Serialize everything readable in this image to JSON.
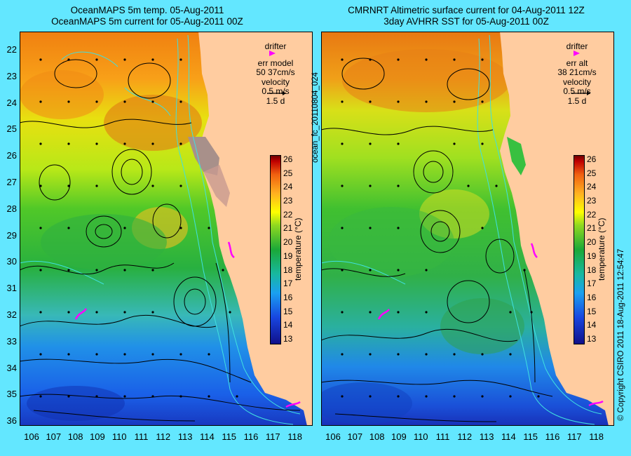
{
  "left_panel": {
    "title_line1": "OceanMAPS 5m temp. 05-Aug-2011",
    "title_line2": "OceanMAPS 5m current for 05-Aug-2011 00Z",
    "legend": {
      "drifter_label": "drifter",
      "err_label": "err model",
      "err_value": "50 37cm/s",
      "velocity_label": "velocity",
      "velocity_scale": "0.5 m/s",
      "duration": "1.5 d"
    }
  },
  "right_panel": {
    "title_line1": "CMRNRT Altimetric surface current for 04-Aug-2011 12Z",
    "title_line2": "3day AVHRR SST for 05-Aug-2011 00Z",
    "legend": {
      "drifter_label": "drifter",
      "err_label": "err alt",
      "err_value": "38 21cm/s",
      "velocity_label": "velocity",
      "velocity_scale": "0.5 m/s",
      "duration": "1.5 d"
    }
  },
  "center_label": "ocean_fc_20110804_024",
  "copyright": "© Copyright CSIRO 2011   18-Aug-2011 12:54:47",
  "axes": {
    "lat_ticks": [
      "22",
      "23",
      "24",
      "25",
      "26",
      "27",
      "28",
      "29",
      "30",
      "31",
      "32",
      "33",
      "34",
      "35",
      "36"
    ],
    "lon_ticks": [
      "106",
      "107",
      "108",
      "109",
      "110",
      "111",
      "112",
      "113",
      "114",
      "115",
      "116",
      "117",
      "118"
    ]
  },
  "colorbar": {
    "title": "temperature (°C)",
    "ticks": [
      "26",
      "25",
      "24",
      "23",
      "22",
      "21",
      "20",
      "19",
      "18",
      "17",
      "16",
      "15",
      "14",
      "13"
    ],
    "range": [
      12.5,
      26.5
    ]
  },
  "colors": {
    "background": "#63e7ff",
    "land": "#ffcca0",
    "drifter": "#ff00ff",
    "warm": "#f08a14",
    "cool": "#1a60e8"
  }
}
